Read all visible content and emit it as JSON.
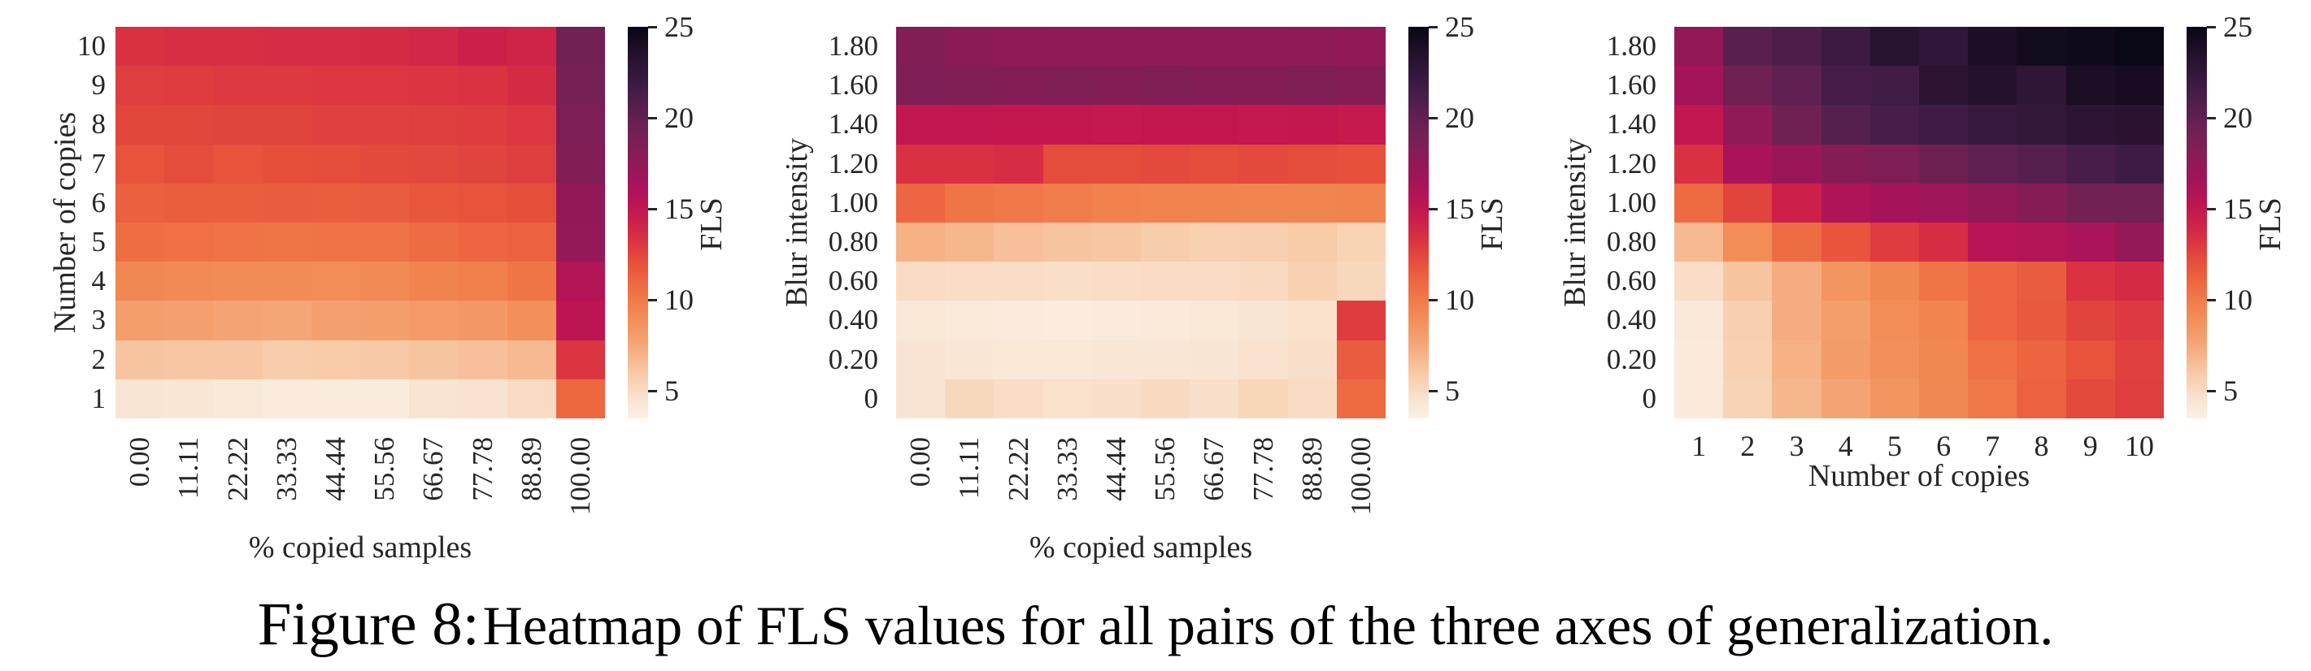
{
  "caption": {
    "label": "Figure 8:",
    "text": "Heatmap of FLS values for all pairs of the three axes of generalization."
  },
  "colormap": {
    "name": "rocket_r",
    "vmin": 3.5,
    "vmax": 25.0,
    "stops": [
      [
        0.0,
        "#fcf0e3"
      ],
      [
        0.05,
        "#f9e3d0"
      ],
      [
        0.1,
        "#f8d0b0"
      ],
      [
        0.16,
        "#f6b48a"
      ],
      [
        0.22,
        "#f39965"
      ],
      [
        0.28,
        "#f1854f"
      ],
      [
        0.34,
        "#ee6a42"
      ],
      [
        0.4,
        "#e64f3a"
      ],
      [
        0.46,
        "#d93042"
      ],
      [
        0.53,
        "#c3164f"
      ],
      [
        0.6,
        "#a6135b"
      ],
      [
        0.66,
        "#8e1a57"
      ],
      [
        0.72,
        "#752155"
      ],
      [
        0.78,
        "#5c2150"
      ],
      [
        0.85,
        "#3e1b44"
      ],
      [
        0.92,
        "#281330"
      ],
      [
        1.0,
        "#080615"
      ]
    ]
  },
  "chart_data": [
    {
      "type": "heatmap",
      "xlabel": "% copied samples",
      "ylabel": "Number of copies",
      "x_tick_rotation": 90,
      "x_categories": [
        "0.00",
        "11.11",
        "22.22",
        "33.33",
        "44.44",
        "55.56",
        "66.67",
        "77.78",
        "88.89",
        "100.00"
      ],
      "y_categories_bottom_to_top": [
        "1",
        "2",
        "3",
        "4",
        "5",
        "6",
        "7",
        "8",
        "9",
        "10"
      ],
      "colorbar": {
        "label": "FLS",
        "ticks": [
          25,
          20,
          15,
          10,
          5
        ]
      },
      "values_bottom_to_top": [
        [
          4.4,
          4.3,
          4.1,
          3.9,
          3.9,
          3.9,
          4.5,
          4.6,
          5.0,
          10.9
        ],
        [
          6.2,
          6.1,
          6.1,
          5.8,
          5.9,
          6.0,
          6.2,
          6.4,
          6.7,
          13.2
        ],
        [
          8.0,
          7.9,
          7.7,
          7.6,
          7.9,
          8.0,
          8.2,
          8.3,
          8.9,
          15.2
        ],
        [
          9.3,
          9.2,
          9.1,
          9.1,
          9.0,
          9.2,
          9.6,
          9.8,
          10.3,
          15.8
        ],
        [
          10.6,
          10.5,
          10.4,
          10.3,
          10.4,
          10.4,
          10.7,
          11.0,
          11.2,
          17.3
        ],
        [
          11.3,
          11.4,
          11.4,
          11.5,
          11.4,
          11.5,
          11.7,
          11.9,
          12.1,
          17.4
        ],
        [
          11.9,
          12.2,
          11.9,
          12.1,
          12.2,
          12.3,
          12.4,
          12.6,
          12.8,
          18.3
        ],
        [
          12.5,
          12.5,
          12.6,
          12.6,
          12.7,
          12.7,
          12.8,
          12.9,
          13.1,
          18.5
        ],
        [
          12.8,
          12.9,
          13.0,
          13.0,
          13.1,
          13.1,
          13.2,
          13.3,
          13.7,
          19.0
        ],
        [
          13.4,
          13.5,
          13.5,
          13.6,
          13.6,
          13.7,
          13.9,
          14.3,
          14.1,
          19.2
        ]
      ]
    },
    {
      "type": "heatmap",
      "xlabel": "% copied samples",
      "ylabel": "Blur intensity",
      "x_tick_rotation": 90,
      "x_categories": [
        "0.00",
        "11.11",
        "22.22",
        "33.33",
        "44.44",
        "55.56",
        "66.67",
        "77.78",
        "88.89",
        "100.00"
      ],
      "y_categories_bottom_to_top": [
        "0",
        "0.20",
        "0.40",
        "0.60",
        "0.80",
        "1.00",
        "1.20",
        "1.40",
        "1.60",
        "1.80"
      ],
      "colorbar": {
        "label": "FLS",
        "ticks": [
          25,
          20,
          15,
          10,
          5
        ]
      },
      "values_bottom_to_top": [
        [
          4.5,
          5.2,
          4.9,
          4.7,
          4.8,
          5.1,
          4.8,
          5.3,
          5.0,
          10.8
        ],
        [
          4.5,
          4.3,
          4.2,
          4.2,
          4.3,
          4.3,
          4.4,
          4.6,
          4.8,
          11.5
        ],
        [
          4.2,
          4.0,
          3.9,
          3.8,
          3.9,
          4.0,
          4.2,
          4.4,
          4.7,
          12.9
        ],
        [
          5.0,
          4.9,
          4.9,
          4.8,
          4.9,
          5.0,
          5.0,
          5.1,
          5.6,
          5.2
        ],
        [
          7.1,
          6.8,
          6.4,
          6.2,
          6.1,
          5.8,
          5.6,
          5.7,
          5.9,
          5.5
        ],
        [
          11.0,
          10.3,
          10.2,
          9.9,
          9.7,
          9.6,
          9.6,
          9.5,
          9.5,
          9.6
        ],
        [
          13.4,
          13.4,
          13.6,
          12.2,
          12.2,
          12.3,
          12.2,
          12.3,
          12.2,
          12.0
        ],
        [
          15.0,
          15.0,
          14.9,
          14.9,
          14.8,
          14.9,
          14.9,
          14.8,
          14.9,
          14.7
        ],
        [
          18.5,
          18.4,
          18.3,
          18.4,
          18.3,
          18.4,
          18.3,
          18.3,
          18.4,
          18.2
        ],
        [
          18.3,
          17.9,
          17.7,
          17.6,
          17.6,
          17.7,
          17.6,
          17.6,
          17.7,
          17.5
        ]
      ]
    },
    {
      "type": "heatmap",
      "xlabel": "Number of copies",
      "ylabel": "Blur intensity",
      "x_tick_rotation": 0,
      "x_categories": [
        "1",
        "2",
        "3",
        "4",
        "5",
        "6",
        "7",
        "8",
        "9",
        "10"
      ],
      "y_categories_bottom_to_top": [
        "0",
        "0.20",
        "0.40",
        "0.60",
        "0.80",
        "1.00",
        "1.20",
        "1.40",
        "1.60",
        "1.80"
      ],
      "colorbar": {
        "label": "FLS",
        "ticks": [
          25,
          20,
          15,
          10,
          5
        ]
      },
      "values_bottom_to_top": [
        [
          4.0,
          5.4,
          6.8,
          7.7,
          8.5,
          9.3,
          10.2,
          11.2,
          12.3,
          12.8
        ],
        [
          4.0,
          5.6,
          7.1,
          8.1,
          8.9,
          9.4,
          10.5,
          11.1,
          11.9,
          12.7
        ],
        [
          4.1,
          5.7,
          7.3,
          8.0,
          9.0,
          9.5,
          11.0,
          11.6,
          12.6,
          13.0
        ],
        [
          4.9,
          6.2,
          7.3,
          8.5,
          9.4,
          10.3,
          11.0,
          11.5,
          13.3,
          13.7
        ],
        [
          6.7,
          9.0,
          10.7,
          11.8,
          12.9,
          13.6,
          15.5,
          15.7,
          16.1,
          17.3
        ],
        [
          10.8,
          12.6,
          14.3,
          16.0,
          16.4,
          16.8,
          17.5,
          18.1,
          19.2,
          19.2
        ],
        [
          13.4,
          16.2,
          17.1,
          18.1,
          18.5,
          19.4,
          20.1,
          20.6,
          21.2,
          21.8
        ],
        [
          15.0,
          17.6,
          19.3,
          20.6,
          21.2,
          21.7,
          22.2,
          22.6,
          23.0,
          23.2
        ],
        [
          16.5,
          19.3,
          20.1,
          21.4,
          21.6,
          23.1,
          23.5,
          22.8,
          24.0,
          24.2
        ],
        [
          17.4,
          20.4,
          21.0,
          21.9,
          23.3,
          22.7,
          23.9,
          24.4,
          24.6,
          24.9
        ]
      ]
    }
  ]
}
